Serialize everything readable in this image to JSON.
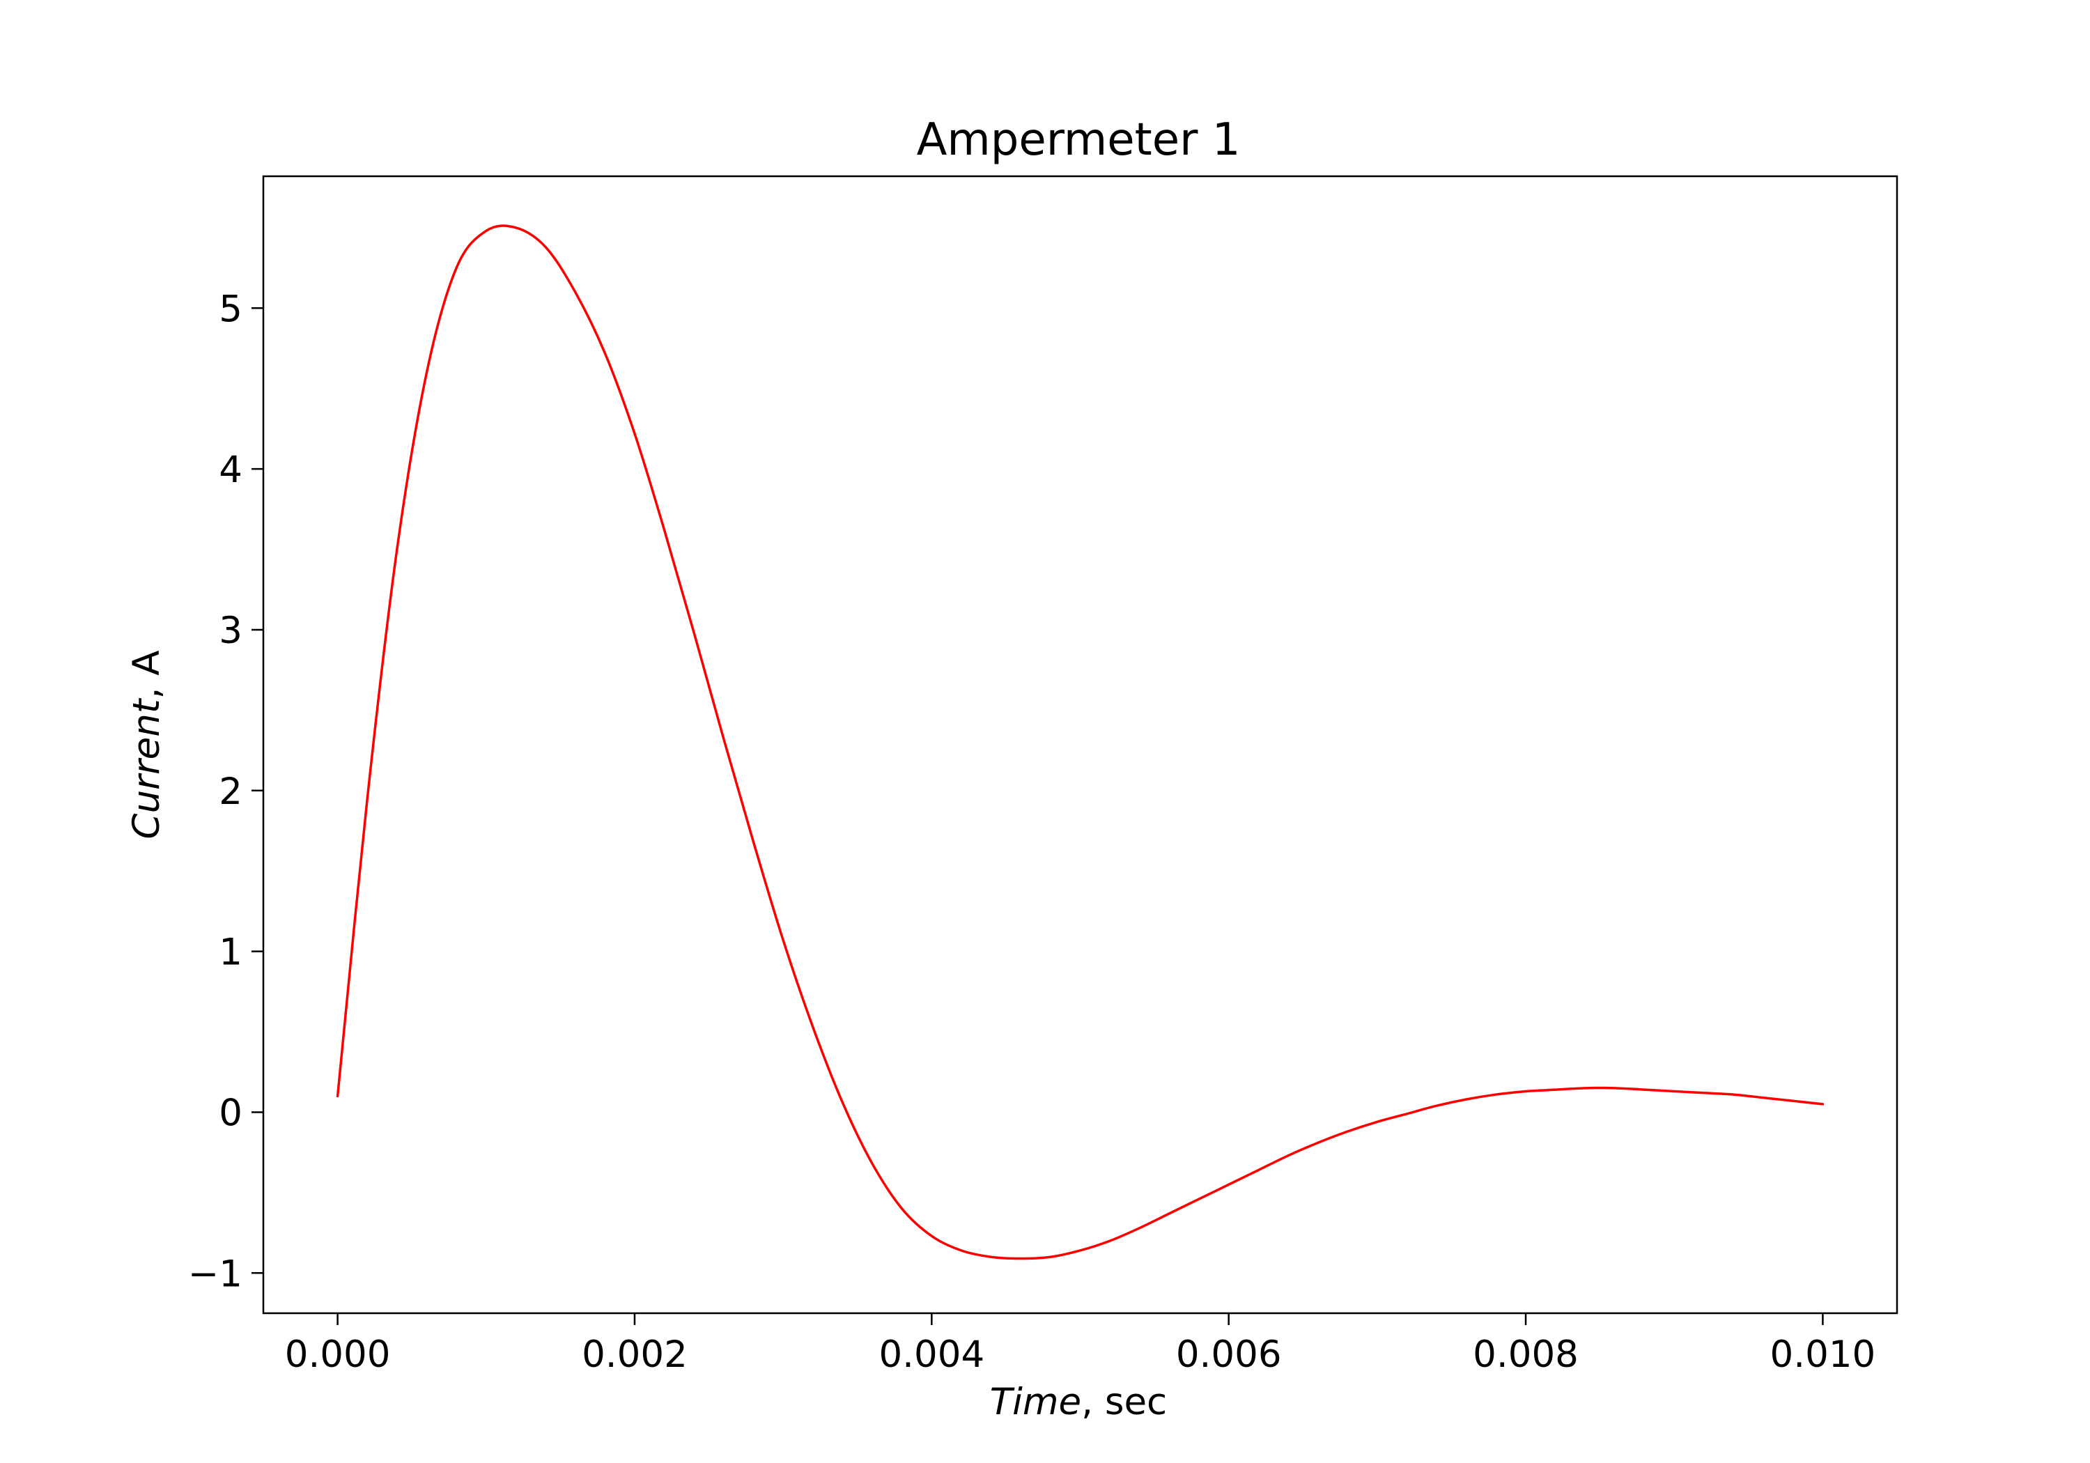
{
  "chart_data": {
    "type": "line",
    "title": "Ampermeter 1",
    "xlabel": {
      "italic": "Time",
      "rest": ", sec"
    },
    "ylabel": {
      "italic": "Current",
      "rest": ", A"
    },
    "xlim": [
      -0.0005,
      0.0105
    ],
    "ylim": [
      -1.25,
      5.82
    ],
    "xticks": [
      0.0,
      0.002,
      0.004,
      0.006,
      0.008,
      0.01
    ],
    "xtick_labels": [
      "0.000",
      "0.002",
      "0.004",
      "0.006",
      "0.008",
      "0.010"
    ],
    "yticks": [
      -1,
      0,
      1,
      2,
      3,
      4,
      5
    ],
    "ytick_labels": [
      "−1",
      "0",
      "1",
      "2",
      "3",
      "4",
      "5"
    ],
    "grid": false,
    "series": [
      {
        "color": "#ff0000",
        "x": [
          0.0,
          0.0002,
          0.0004,
          0.0006,
          0.0008,
          0.001,
          0.0012,
          0.0014,
          0.0016,
          0.0018,
          0.002,
          0.0022,
          0.0024,
          0.0026,
          0.0028,
          0.003,
          0.0032,
          0.0034,
          0.0036,
          0.0038,
          0.004,
          0.0042,
          0.0044,
          0.0046,
          0.0048,
          0.005,
          0.0052,
          0.0054,
          0.0056,
          0.0058,
          0.006,
          0.0062,
          0.0064,
          0.0066,
          0.0068,
          0.007,
          0.0072,
          0.0074,
          0.0076,
          0.0078,
          0.008,
          0.0082,
          0.0084,
          0.0086,
          0.0088,
          0.009,
          0.0092,
          0.0094,
          0.0096,
          0.0098,
          0.01
        ],
        "y": [
          0.1,
          1.95,
          3.5,
          4.6,
          5.25,
          5.48,
          5.5,
          5.38,
          5.1,
          4.72,
          4.22,
          3.62,
          2.98,
          2.32,
          1.68,
          1.07,
          0.53,
          0.06,
          -0.32,
          -0.6,
          -0.77,
          -0.86,
          -0.9,
          -0.91,
          -0.9,
          -0.86,
          -0.8,
          -0.72,
          -0.63,
          -0.54,
          -0.45,
          -0.36,
          -0.27,
          -0.19,
          -0.12,
          -0.06,
          -0.01,
          0.04,
          0.08,
          0.11,
          0.13,
          0.14,
          0.15,
          0.15,
          0.14,
          0.13,
          0.12,
          0.11,
          0.09,
          0.07,
          0.05
        ]
      }
    ]
  }
}
